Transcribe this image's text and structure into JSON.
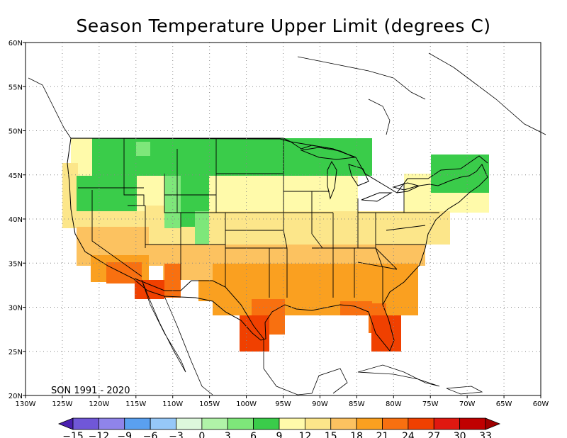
{
  "title": "Season Temperature Upper Limit (degrees C)",
  "note": "SON 1991 - 2020",
  "lon_labels": [
    "130W",
    "125W",
    "120W",
    "115W",
    "110W",
    "105W",
    "100W",
    "95W",
    "90W",
    "85W",
    "80W",
    "75W",
    "70W",
    "65W",
    "60W"
  ],
  "lat_labels": [
    "20N",
    "25N",
    "30N",
    "35N",
    "40N",
    "45N",
    "50N",
    "55N",
    "60N"
  ],
  "colorbar": {
    "labels": [
      "-15",
      "-12",
      "-9",
      "-6",
      "-3",
      "0",
      "3",
      "6",
      "9",
      "12",
      "15",
      "18",
      "21",
      "24",
      "27",
      "30",
      "33"
    ],
    "colors": [
      "#4a1fb0",
      "#7057d8",
      "#8f84ea",
      "#5aa0f0",
      "#96c8f8",
      "#ddf8dc",
      "#b0f3a8",
      "#7ee77a",
      "#3acc4a",
      "#fffaaa",
      "#fce68a",
      "#fcc260",
      "#faa020",
      "#f87010",
      "#f04000",
      "#e01810",
      "#c00000",
      "#a00000"
    ]
  },
  "regions": [
    {
      "name": "northern-tier",
      "band": "6 to 9",
      "color": "#3acc4a"
    },
    {
      "name": "rockies",
      "band": "3 to 6",
      "color": "#7ee77a"
    },
    {
      "name": "great-plains-midwest",
      "band": "9 to 12",
      "color": "#fffaaa"
    },
    {
      "name": "central-plains",
      "band": "12 to 15",
      "color": "#fce68a"
    },
    {
      "name": "southern-plains",
      "band": "15 to 18",
      "color": "#fcc260"
    },
    {
      "name": "gulf-states",
      "band": "18 to 21",
      "color": "#faa020"
    },
    {
      "name": "gulf-coast",
      "band": "21 to 24",
      "color": "#f87010"
    },
    {
      "name": "south-florida-texas",
      "band": "24 to 27",
      "color": "#f04000"
    }
  ]
}
